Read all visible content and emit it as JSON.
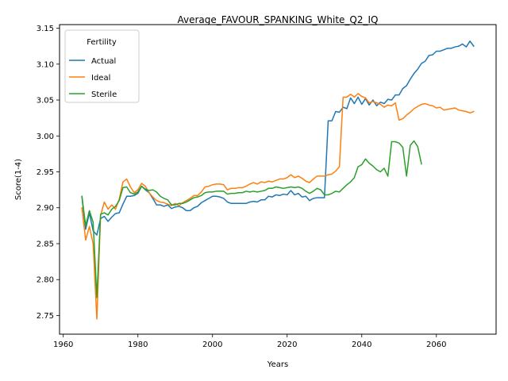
{
  "chart_data": {
    "type": "line",
    "title": "Average_FAVOUR_SPANKING_White_Q2_IQ",
    "xlabel": "Years",
    "ylabel": "Score(1-4)",
    "xlim": [
      1959,
      2076
    ],
    "ylim": [
      2.724,
      3.155
    ],
    "xticks": [
      1960,
      1980,
      2000,
      2020,
      2040,
      2060
    ],
    "yticks": [
      2.75,
      2.8,
      2.85,
      2.9,
      2.95,
      3.0,
      3.05,
      3.1,
      3.15
    ],
    "ytick_labels": [
      "2.75",
      "2.80",
      "2.85",
      "2.90",
      "2.95",
      "3.00",
      "3.05",
      "3.10",
      "3.15"
    ],
    "grid": false,
    "legend": {
      "title": "Fertility",
      "placement": "top-left"
    },
    "series": [
      {
        "name": "Actual",
        "color": "#1f77b4",
        "points": [
          [
            1965,
            2.915
          ],
          [
            1966,
            2.87
          ],
          [
            1967,
            2.893
          ],
          [
            1968,
            2.868
          ],
          [
            1969,
            2.862
          ],
          [
            1970,
            2.885
          ],
          [
            1971,
            2.888
          ],
          [
            1972,
            2.881
          ],
          [
            1973,
            2.887
          ],
          [
            1974,
            2.892
          ],
          [
            1975,
            2.893
          ],
          [
            1976,
            2.905
          ],
          [
            1977,
            2.916
          ],
          [
            1978,
            2.916
          ],
          [
            1979,
            2.917
          ],
          [
            1980,
            2.92
          ],
          [
            1981,
            2.93
          ],
          [
            1982,
            2.925
          ],
          [
            1983,
            2.921
          ],
          [
            1984,
            2.913
          ],
          [
            1985,
            2.904
          ],
          [
            1986,
            2.904
          ],
          [
            1987,
            2.902
          ],
          [
            1988,
            2.904
          ],
          [
            1989,
            2.899
          ],
          [
            1990,
            2.901
          ],
          [
            1991,
            2.902
          ],
          [
            1992,
            2.9
          ],
          [
            1993,
            2.896
          ],
          [
            1994,
            2.896
          ],
          [
            1995,
            2.9
          ],
          [
            1996,
            2.902
          ],
          [
            1997,
            2.907
          ],
          [
            1998,
            2.91
          ],
          [
            1999,
            2.913
          ],
          [
            2000,
            2.916
          ],
          [
            2001,
            2.916
          ],
          [
            2002,
            2.915
          ],
          [
            2003,
            2.913
          ],
          [
            2004,
            2.908
          ],
          [
            2005,
            2.906
          ],
          [
            2006,
            2.906
          ],
          [
            2007,
            2.906
          ],
          [
            2008,
            2.906
          ],
          [
            2009,
            2.906
          ],
          [
            2010,
            2.908
          ],
          [
            2011,
            2.909
          ],
          [
            2012,
            2.908
          ],
          [
            2013,
            2.911
          ],
          [
            2014,
            2.911
          ],
          [
            2015,
            2.916
          ],
          [
            2016,
            2.915
          ],
          [
            2017,
            2.918
          ],
          [
            2018,
            2.917
          ],
          [
            2019,
            2.919
          ],
          [
            2020,
            2.918
          ],
          [
            2021,
            2.924
          ],
          [
            2022,
            2.918
          ],
          [
            2023,
            2.92
          ],
          [
            2024,
            2.915
          ],
          [
            2025,
            2.916
          ],
          [
            2026,
            2.91
          ],
          [
            2027,
            2.913
          ],
          [
            2028,
            2.914
          ],
          [
            2029,
            2.914
          ],
          [
            2030,
            2.914
          ],
          [
            2031,
            3.021
          ],
          [
            2032,
            3.021
          ],
          [
            2033,
            3.034
          ],
          [
            2034,
            3.033
          ],
          [
            2035,
            3.04
          ],
          [
            2036,
            3.038
          ],
          [
            2037,
            3.053
          ],
          [
            2038,
            3.045
          ],
          [
            2039,
            3.054
          ],
          [
            2040,
            3.044
          ],
          [
            2041,
            3.052
          ],
          [
            2042,
            3.043
          ],
          [
            2043,
            3.05
          ],
          [
            2044,
            3.042
          ],
          [
            2045,
            3.047
          ],
          [
            2046,
            3.045
          ],
          [
            2047,
            3.051
          ],
          [
            2048,
            3.05
          ],
          [
            2049,
            3.057
          ],
          [
            2050,
            3.057
          ],
          [
            2051,
            3.066
          ],
          [
            2052,
            3.07
          ],
          [
            2053,
            3.079
          ],
          [
            2054,
            3.087
          ],
          [
            2055,
            3.093
          ],
          [
            2056,
            3.101
          ],
          [
            2057,
            3.104
          ],
          [
            2058,
            3.112
          ],
          [
            2059,
            3.113
          ],
          [
            2060,
            3.118
          ],
          [
            2061,
            3.118
          ],
          [
            2062,
            3.12
          ],
          [
            2063,
            3.122
          ],
          [
            2064,
            3.122
          ],
          [
            2065,
            3.124
          ],
          [
            2066,
            3.125
          ],
          [
            2067,
            3.128
          ],
          [
            2068,
            3.124
          ],
          [
            2069,
            3.132
          ],
          [
            2070,
            3.125
          ]
        ]
      },
      {
        "name": "Ideal",
        "color": "#ff7f0e",
        "points": [
          [
            1965,
            2.9
          ],
          [
            1966,
            2.855
          ],
          [
            1967,
            2.874
          ],
          [
            1968,
            2.85
          ],
          [
            1969,
            2.745
          ],
          [
            1970,
            2.889
          ],
          [
            1971,
            2.908
          ],
          [
            1972,
            2.898
          ],
          [
            1973,
            2.904
          ],
          [
            1974,
            2.898
          ],
          [
            1975,
            2.912
          ],
          [
            1976,
            2.936
          ],
          [
            1977,
            2.94
          ],
          [
            1978,
            2.929
          ],
          [
            1979,
            2.921
          ],
          [
            1980,
            2.925
          ],
          [
            1981,
            2.934
          ],
          [
            1982,
            2.93
          ],
          [
            1983,
            2.921
          ],
          [
            1984,
            2.915
          ],
          [
            1985,
            2.91
          ],
          [
            1986,
            2.908
          ],
          [
            1987,
            2.907
          ],
          [
            1988,
            2.905
          ],
          [
            1989,
            2.903
          ],
          [
            1990,
            2.906
          ],
          [
            1991,
            2.903
          ],
          [
            1992,
            2.907
          ],
          [
            1993,
            2.91
          ],
          [
            1994,
            2.913
          ],
          [
            1995,
            2.917
          ],
          [
            1996,
            2.917
          ],
          [
            1997,
            2.922
          ],
          [
            1998,
            2.929
          ],
          [
            1999,
            2.93
          ],
          [
            2000,
            2.932
          ],
          [
            2001,
            2.933
          ],
          [
            2002,
            2.933
          ],
          [
            2003,
            2.932
          ],
          [
            2004,
            2.925
          ],
          [
            2005,
            2.927
          ],
          [
            2006,
            2.927
          ],
          [
            2007,
            2.928
          ],
          [
            2008,
            2.928
          ],
          [
            2009,
            2.93
          ],
          [
            2010,
            2.933
          ],
          [
            2011,
            2.935
          ],
          [
            2012,
            2.933
          ],
          [
            2013,
            2.936
          ],
          [
            2014,
            2.935
          ],
          [
            2015,
            2.937
          ],
          [
            2016,
            2.936
          ],
          [
            2017,
            2.938
          ],
          [
            2018,
            2.94
          ],
          [
            2019,
            2.94
          ],
          [
            2020,
            2.942
          ],
          [
            2021,
            2.946
          ],
          [
            2022,
            2.942
          ],
          [
            2023,
            2.944
          ],
          [
            2024,
            2.941
          ],
          [
            2025,
            2.937
          ],
          [
            2026,
            2.935
          ],
          [
            2027,
            2.94
          ],
          [
            2028,
            2.944
          ],
          [
            2029,
            2.944
          ],
          [
            2030,
            2.944
          ],
          [
            2031,
            2.946
          ],
          [
            2032,
            2.947
          ],
          [
            2033,
            2.951
          ],
          [
            2034,
            2.957
          ],
          [
            2035,
            3.054
          ],
          [
            2036,
            3.054
          ],
          [
            2037,
            3.058
          ],
          [
            2038,
            3.054
          ],
          [
            2039,
            3.059
          ],
          [
            2040,
            3.055
          ],
          [
            2041,
            3.053
          ],
          [
            2042,
            3.046
          ],
          [
            2043,
            3.048
          ],
          [
            2044,
            3.046
          ],
          [
            2045,
            3.044
          ],
          [
            2046,
            3.04
          ],
          [
            2047,
            3.043
          ],
          [
            2048,
            3.042
          ],
          [
            2049,
            3.046
          ],
          [
            2050,
            3.022
          ],
          [
            2051,
            3.024
          ],
          [
            2052,
            3.029
          ],
          [
            2053,
            3.033
          ],
          [
            2054,
            3.038
          ],
          [
            2055,
            3.041
          ],
          [
            2056,
            3.044
          ],
          [
            2057,
            3.045
          ],
          [
            2058,
            3.043
          ],
          [
            2059,
            3.042
          ],
          [
            2060,
            3.039
          ],
          [
            2061,
            3.04
          ],
          [
            2062,
            3.036
          ],
          [
            2063,
            3.037
          ],
          [
            2064,
            3.038
          ],
          [
            2065,
            3.039
          ],
          [
            2066,
            3.036
          ],
          [
            2067,
            3.035
          ],
          [
            2068,
            3.034
          ],
          [
            2069,
            3.032
          ],
          [
            2070,
            3.034
          ]
        ]
      },
      {
        "name": "Sterile",
        "color": "#2ca02c",
        "points": [
          [
            1965,
            2.916
          ],
          [
            1966,
            2.875
          ],
          [
            1967,
            2.896
          ],
          [
            1968,
            2.88
          ],
          [
            1969,
            2.775
          ],
          [
            1970,
            2.891
          ],
          [
            1971,
            2.893
          ],
          [
            1972,
            2.89
          ],
          [
            1973,
            2.898
          ],
          [
            1974,
            2.902
          ],
          [
            1975,
            2.91
          ],
          [
            1976,
            2.928
          ],
          [
            1977,
            2.929
          ],
          [
            1978,
            2.921
          ],
          [
            1979,
            2.919
          ],
          [
            1980,
            2.922
          ],
          [
            1981,
            2.93
          ],
          [
            1982,
            2.926
          ],
          [
            1983,
            2.924
          ],
          [
            1984,
            2.925
          ],
          [
            1985,
            2.922
          ],
          [
            1986,
            2.916
          ],
          [
            1987,
            2.913
          ],
          [
            1988,
            2.911
          ],
          [
            1989,
            2.904
          ],
          [
            1990,
            2.904
          ],
          [
            1991,
            2.906
          ],
          [
            1992,
            2.906
          ],
          [
            1993,
            2.908
          ],
          [
            1994,
            2.911
          ],
          [
            1995,
            2.914
          ],
          [
            1996,
            2.915
          ],
          [
            1997,
            2.917
          ],
          [
            1998,
            2.921
          ],
          [
            1999,
            2.922
          ],
          [
            2000,
            2.922
          ],
          [
            2001,
            2.923
          ],
          [
            2002,
            2.923
          ],
          [
            2003,
            2.923
          ],
          [
            2004,
            2.919
          ],
          [
            2005,
            2.92
          ],
          [
            2006,
            2.92
          ],
          [
            2007,
            2.921
          ],
          [
            2008,
            2.921
          ],
          [
            2009,
            2.923
          ],
          [
            2010,
            2.922
          ],
          [
            2011,
            2.923
          ],
          [
            2012,
            2.922
          ],
          [
            2013,
            2.923
          ],
          [
            2014,
            2.924
          ],
          [
            2015,
            2.927
          ],
          [
            2016,
            2.927
          ],
          [
            2017,
            2.929
          ],
          [
            2018,
            2.928
          ],
          [
            2019,
            2.927
          ],
          [
            2020,
            2.928
          ],
          [
            2021,
            2.929
          ],
          [
            2022,
            2.928
          ],
          [
            2023,
            2.929
          ],
          [
            2024,
            2.927
          ],
          [
            2025,
            2.923
          ],
          [
            2026,
            2.92
          ],
          [
            2027,
            2.923
          ],
          [
            2028,
            2.927
          ],
          [
            2029,
            2.925
          ],
          [
            2030,
            2.918
          ],
          [
            2031,
            2.918
          ],
          [
            2032,
            2.92
          ],
          [
            2033,
            2.923
          ],
          [
            2034,
            2.922
          ],
          [
            2035,
            2.927
          ],
          [
            2036,
            2.932
          ],
          [
            2037,
            2.936
          ],
          [
            2038,
            2.942
          ],
          [
            2039,
            2.957
          ],
          [
            2040,
            2.96
          ],
          [
            2041,
            2.968
          ],
          [
            2042,
            2.962
          ],
          [
            2043,
            2.958
          ],
          [
            2044,
            2.953
          ],
          [
            2045,
            2.95
          ],
          [
            2046,
            2.955
          ],
          [
            2047,
            2.944
          ],
          [
            2048,
            2.992
          ],
          [
            2049,
            2.992
          ],
          [
            2050,
            2.99
          ],
          [
            2051,
            2.984
          ],
          [
            2052,
            2.944
          ],
          [
            2053,
            2.987
          ],
          [
            2054,
            2.993
          ],
          [
            2055,
            2.985
          ],
          [
            2056,
            2.961
          ]
        ]
      }
    ]
  }
}
